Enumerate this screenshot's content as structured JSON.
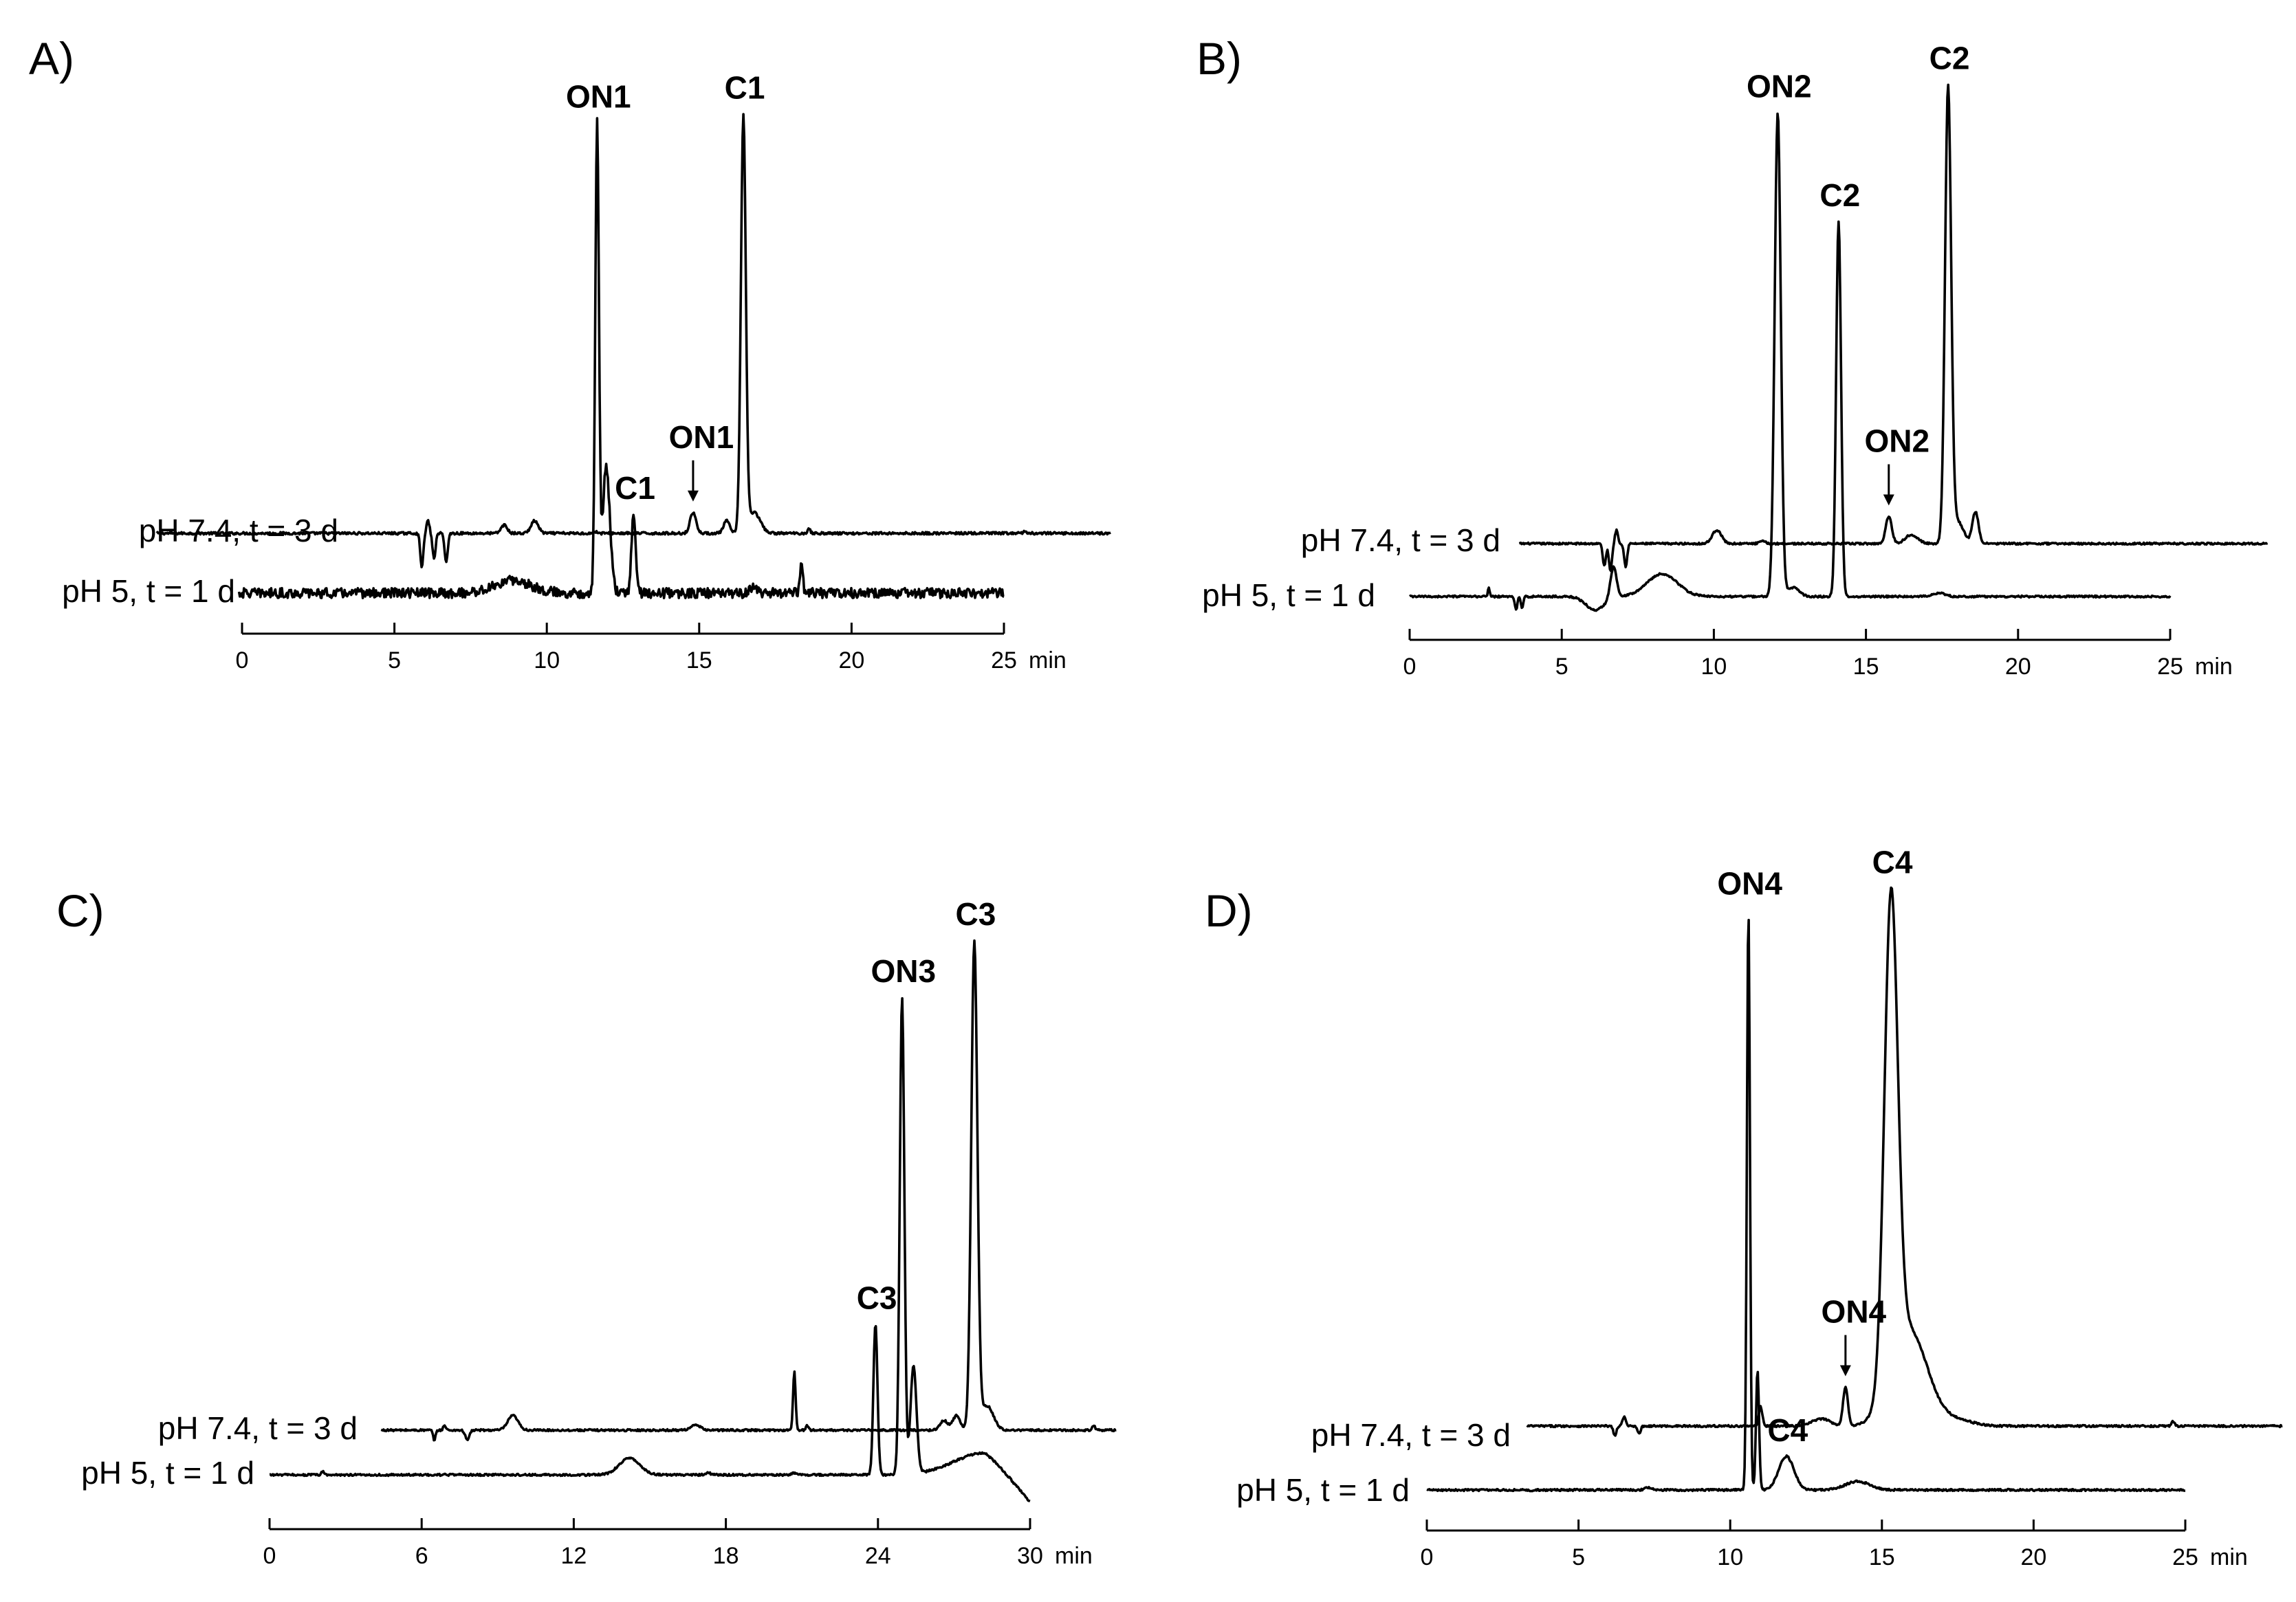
{
  "chart_data": [
    {
      "type": "line",
      "panel": "A)",
      "x_unit": "min",
      "xlim": [
        0,
        25
      ],
      "x_ticks": [
        0,
        5,
        10,
        15,
        20,
        25
      ],
      "series": [
        {
          "name": "pH 7.4, t = 3 d",
          "start_x": -2.8,
          "end_x": 28.5,
          "baseline": 0.0,
          "peaks": [
            [
              5.9,
              -0.08,
              0.05
            ],
            [
              6.1,
              0.03,
              0.05
            ],
            [
              6.3,
              -0.06,
              0.05
            ],
            [
              6.7,
              -0.07,
              0.05
            ],
            [
              8.6,
              0.02,
              0.1
            ],
            [
              9.6,
              0.03,
              0.12
            ],
            [
              11.6,
              0.004,
              0.06
            ],
            [
              14.8,
              0.05,
              0.1
            ],
            [
              15.9,
              0.03,
              0.1
            ],
            [
              16.45,
              1.0,
              0.08
            ],
            [
              16.8,
              0.05,
              0.2
            ],
            [
              18.6,
              0.01,
              0.05
            ],
            [
              25.7,
              0.005,
              0.05
            ]
          ],
          "noise": 0.003
        },
        {
          "name": "pH 5, t = 1 d",
          "start_x": -0.1,
          "end_x": 25,
          "baseline": 0.0,
          "peaks": [
            [
              8.9,
              0.03,
              0.6
            ],
            [
              11.65,
              1.12,
              0.06
            ],
            [
              11.95,
              0.3,
              0.12
            ],
            [
              12.85,
              0.19,
              0.07
            ],
            [
              16.8,
              0.02,
              0.1
            ],
            [
              18.35,
              0.07,
              0.05
            ]
          ],
          "noise": 0.012
        }
      ],
      "annotations": [
        {
          "text": "ON1",
          "x": 11.65,
          "trace": 1,
          "type": "label"
        },
        {
          "text": "C1",
          "x": 12.85,
          "trace": 1,
          "type": "label"
        },
        {
          "text": "ON1",
          "x": 14.8,
          "trace": 0,
          "type": "arrow"
        },
        {
          "text": "C1",
          "x": 16.45,
          "trace": 0,
          "type": "label"
        }
      ]
    },
    {
      "type": "line",
      "panel": "B)",
      "x_unit": "min",
      "xlim": [
        0,
        25
      ],
      "x_ticks": [
        0,
        5,
        10,
        15,
        20,
        25
      ],
      "series": [
        {
          "name": "pH 7.4, t = 3 d",
          "start_x": 3.6,
          "end_x": 28.2,
          "baseline": 0.0,
          "peaks": [
            [
              6.4,
              -0.05,
              0.05
            ],
            [
              6.6,
              -0.06,
              0.05
            ],
            [
              6.8,
              0.03,
              0.05
            ],
            [
              7.1,
              -0.05,
              0.05
            ],
            [
              10.1,
              0.03,
              0.15
            ],
            [
              11.6,
              0.005,
              0.1
            ],
            [
              15.75,
              0.06,
              0.1
            ],
            [
              16.5,
              0.02,
              0.2
            ],
            [
              17.7,
              1.0,
              0.1
            ],
            [
              18.0,
              0.05,
              0.2
            ],
            [
              18.6,
              0.07,
              0.1
            ]
          ],
          "noise": 0.002
        },
        {
          "name": "pH 5, t = 1 d",
          "start_x": 0,
          "end_x": 25,
          "baseline": 0.0,
          "peaks": [
            [
              2.6,
              0.02,
              0.03
            ],
            [
              3.5,
              -0.03,
              0.04
            ],
            [
              3.7,
              -0.025,
              0.04
            ],
            [
              6.1,
              -0.03,
              0.3
            ],
            [
              6.7,
              0.07,
              0.1
            ],
            [
              8.3,
              0.05,
              0.5
            ],
            [
              12.1,
              1.07,
              0.1
            ],
            [
              12.6,
              0.02,
              0.2
            ],
            [
              14.1,
              0.83,
              0.08
            ],
            [
              17.4,
              0.008,
              0.2
            ]
          ],
          "noise": 0.002
        }
      ],
      "annotations": [
        {
          "text": "ON2",
          "x": 12.1,
          "trace": 1,
          "type": "label"
        },
        {
          "text": "C2",
          "x": 14.1,
          "trace": 1,
          "type": "label"
        },
        {
          "text": "ON2",
          "x": 15.75,
          "trace": 0,
          "type": "arrow"
        },
        {
          "text": "C2",
          "x": 17.7,
          "trace": 0,
          "type": "label"
        }
      ]
    },
    {
      "type": "line",
      "panel": "C)",
      "x_unit": "min",
      "xlim": [
        0,
        30
      ],
      "x_ticks": [
        0,
        6,
        12,
        18,
        24,
        30
      ],
      "series": [
        {
          "name": "pH 7.4, t = 3 d",
          "start_x": 4.4,
          "end_x": 33.4,
          "baseline": 0.0,
          "peaks": [
            [
              6.5,
              -0.02,
              0.05
            ],
            [
              6.9,
              0.01,
              0.05
            ],
            [
              7.8,
              -0.02,
              0.08
            ],
            [
              9.6,
              0.03,
              0.2
            ],
            [
              16.8,
              0.01,
              0.2
            ],
            [
              20.7,
              0.12,
              0.05
            ],
            [
              21.2,
              0.01,
              0.05
            ],
            [
              26.6,
              0.02,
              0.15
            ],
            [
              27.1,
              0.03,
              0.15
            ],
            [
              27.8,
              1.0,
              0.12
            ],
            [
              28.3,
              0.05,
              0.25
            ],
            [
              32.5,
              0.01,
              0.06
            ]
          ],
          "noise": 0.002
        },
        {
          "name": "pH 5, t = 1 d",
          "start_x": 0,
          "end_x": 30,
          "baseline": 0.0,
          "peaks": [
            [
              2.1,
              0.007,
              0.05
            ],
            [
              14.2,
              0.035,
              0.4
            ],
            [
              17.3,
              0.004,
              0.1
            ],
            [
              20.7,
              0.004,
              0.1
            ],
            [
              23.9,
              0.31,
              0.08
            ],
            [
              24.95,
              0.98,
              0.09
            ],
            [
              25.4,
              0.22,
              0.12
            ],
            [
              28.2,
              0.045,
              1.2
            ]
          ],
          "noise": 0.002,
          "end_drift": -0.07
        }
      ],
      "annotations": [
        {
          "text": "C3",
          "x": 23.9,
          "trace": 1,
          "type": "label"
        },
        {
          "text": "ON3",
          "x": 24.95,
          "trace": 1,
          "type": "label"
        },
        {
          "text": "C3",
          "x": 27.8,
          "trace": 0,
          "type": "label"
        }
      ]
    },
    {
      "type": "line",
      "panel": "D)",
      "x_unit": "min",
      "xlim": [
        0,
        25
      ],
      "x_ticks": [
        0,
        5,
        10,
        15,
        20,
        25
      ],
      "series": [
        {
          "name": "pH 7.4, t = 3 d",
          "start_x": 3.3,
          "end_x": 28.2,
          "baseline": 0.0,
          "peaks": [
            [
              6.2,
              -0.02,
              0.05
            ],
            [
              6.5,
              0.02,
              0.05
            ],
            [
              7.0,
              -0.015,
              0.05
            ],
            [
              11.0,
              0.04,
              0.06
            ],
            [
              13.0,
              0.015,
              0.3
            ],
            [
              13.8,
              0.08,
              0.08
            ],
            [
              15.3,
              1.0,
              0.22
            ],
            [
              15.9,
              0.2,
              0.6
            ],
            [
              17.5,
              0.012,
              0.5
            ],
            [
              24.6,
              0.01,
              0.05
            ]
          ],
          "noise": 0.002
        },
        {
          "name": "pH 5, t = 1 d",
          "start_x": 0,
          "end_x": 25,
          "baseline": 0.0,
          "peaks": [
            [
              3.5,
              -0.003,
              0.05
            ],
            [
              7.3,
              0.005,
              0.1
            ],
            [
              10.6,
              1.21,
              0.05
            ],
            [
              10.9,
              0.25,
              0.05
            ],
            [
              11.85,
              0.07,
              0.25
            ],
            [
              14.2,
              0.018,
              0.4
            ]
          ],
          "noise": 0.002
        }
      ],
      "annotations": [
        {
          "text": "ON4",
          "x": 10.6,
          "trace": 1,
          "type": "label"
        },
        {
          "text": "C4",
          "x": 11.85,
          "trace": 1,
          "type": "label"
        },
        {
          "text": "ON4",
          "x": 13.8,
          "trace": 0,
          "type": "arrow"
        },
        {
          "text": "C4",
          "x": 15.3,
          "trace": 0,
          "type": "label"
        }
      ]
    }
  ]
}
